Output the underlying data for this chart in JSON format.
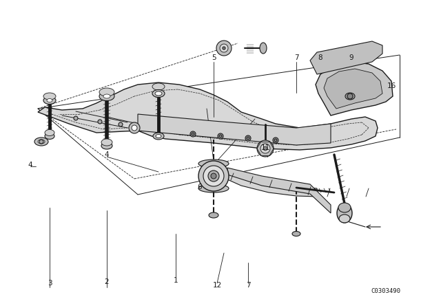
{
  "bg_color": "#ffffff",
  "fig_width": 6.4,
  "fig_height": 4.48,
  "dpi": 100,
  "catalog_number": "C0303490",
  "line_color": "#1a1a1a",
  "label_fontsize": 7.5,
  "catalog_fontsize": 6.5
}
